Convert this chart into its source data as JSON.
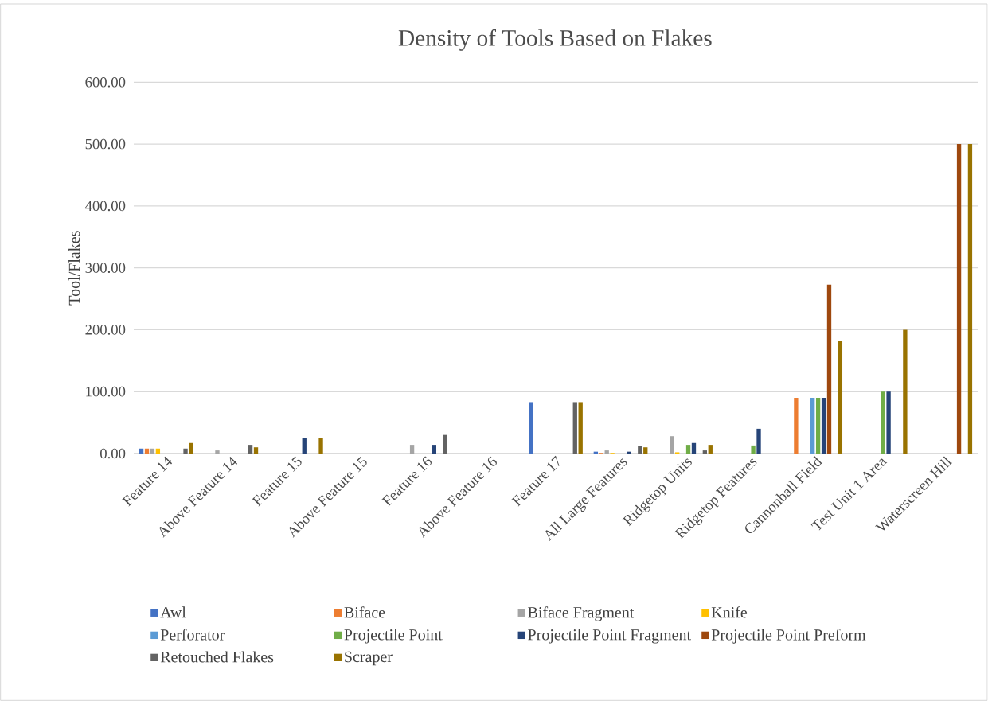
{
  "chart_data": {
    "type": "bar",
    "title": "Density of Tools Based on Flakes",
    "ylabel": "Tool/Flakes",
    "categories": [
      "Feature 14",
      "Above Feature 14",
      "Feature 15",
      "Above Feature 15",
      "Feature 16",
      "Above Feature 16",
      "Feature 17",
      "All Large Features",
      "Ridgetop Units",
      "Ridgetop Features",
      "Cannonball Field",
      "Test Unit 1 Area",
      "Waterscreen Hill"
    ],
    "series": [
      {
        "name": "Awl",
        "color": "#4472c4",
        "values": [
          8,
          null,
          null,
          null,
          null,
          null,
          83,
          3,
          null,
          null,
          null,
          null,
          null
        ]
      },
      {
        "name": "Biface",
        "color": "#ed7d31",
        "values": [
          8,
          null,
          null,
          null,
          null,
          null,
          null,
          1,
          null,
          null,
          90,
          null,
          null
        ]
      },
      {
        "name": "Biface Fragment",
        "color": "#a5a5a5",
        "values": [
          8,
          5,
          null,
          null,
          14,
          null,
          null,
          5,
          28,
          null,
          null,
          null,
          null
        ]
      },
      {
        "name": "Knife",
        "color": "#ffc000",
        "values": [
          8,
          null,
          null,
          null,
          null,
          null,
          null,
          1,
          2,
          null,
          null,
          null,
          null
        ]
      },
      {
        "name": "Perforator",
        "color": "#5b9bd5",
        "values": [
          null,
          null,
          null,
          null,
          null,
          null,
          null,
          null,
          null,
          null,
          90,
          null,
          null
        ]
      },
      {
        "name": "Projectile Point",
        "color": "#70ad47",
        "values": [
          null,
          null,
          null,
          null,
          null,
          null,
          null,
          null,
          14,
          13,
          90,
          100,
          null
        ]
      },
      {
        "name": "Projectile Point Fragment",
        "color": "#264478",
        "values": [
          null,
          null,
          25,
          null,
          14,
          null,
          null,
          3,
          17,
          40,
          90,
          100,
          null
        ]
      },
      {
        "name": "Projectile Point Preform",
        "color": "#9e480e",
        "values": [
          null,
          null,
          null,
          null,
          null,
          null,
          null,
          null,
          null,
          null,
          273,
          null,
          500
        ]
      },
      {
        "name": "Retouched Flakes",
        "color": "#636363",
        "values": [
          8,
          14,
          null,
          null,
          30,
          null,
          83,
          12,
          5,
          null,
          null,
          null,
          null
        ]
      },
      {
        "name": "Scraper",
        "color": "#997300",
        "values": [
          17,
          10,
          25,
          null,
          null,
          null,
          83,
          10,
          14,
          null,
          182,
          200,
          500
        ]
      }
    ],
    "ylim": [
      0,
      600
    ],
    "yticks": [
      {
        "value": 0,
        "label": "0.00"
      },
      {
        "value": 100,
        "label": "100.00"
      },
      {
        "value": 200,
        "label": "200.00"
      },
      {
        "value": 300,
        "label": "300.00"
      },
      {
        "value": 400,
        "label": "400.00"
      },
      {
        "value": 500,
        "label": "500.00"
      },
      {
        "value": 600,
        "label": "600.00"
      }
    ],
    "grid": "y",
    "legend": "bottom"
  }
}
